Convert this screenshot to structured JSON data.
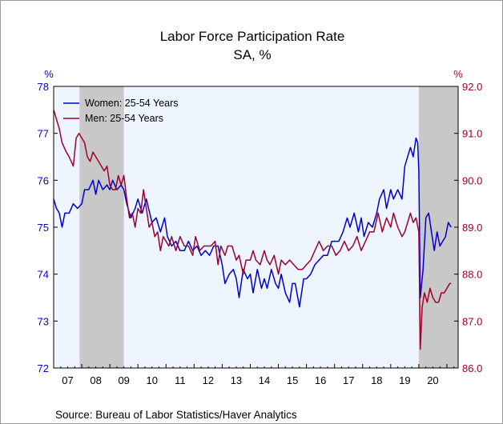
{
  "chart_data": {
    "type": "line",
    "title": "Labor Force Participation Rate",
    "subtitle": "SA, %",
    "source": "Source:  Bureau of Labor Statistics/Haver Analytics",
    "left_axis": {
      "unit": "%",
      "range": [
        72,
        78
      ],
      "ticks": [
        "72",
        "73",
        "74",
        "75",
        "76",
        "77",
        "78"
      ],
      "color": "#0000cc"
    },
    "right_axis": {
      "unit": "%",
      "range": [
        86,
        92
      ],
      "ticks": [
        "86.0",
        "87.0",
        "88.0",
        "89.0",
        "90.0",
        "91.0",
        "92.0"
      ],
      "color": "#a0002a"
    },
    "x_axis": {
      "range": [
        2007,
        2021.4
      ],
      "labels": [
        "07",
        "08",
        "09",
        "10",
        "11",
        "12",
        "13",
        "14",
        "15",
        "16",
        "17",
        "18",
        "19",
        "20"
      ]
    },
    "recessions": [
      [
        2007.92,
        2009.5
      ],
      [
        2020.0,
        2021.4
      ]
    ],
    "legend_position": "top-left",
    "series": [
      {
        "name": "Women: 25-54 Years",
        "axis": "left",
        "color": "#0000cc",
        "points": [
          [
            2007.0,
            75.6
          ],
          [
            2007.1,
            75.4
          ],
          [
            2007.2,
            75.3
          ],
          [
            2007.3,
            75.0
          ],
          [
            2007.4,
            75.3
          ],
          [
            2007.55,
            75.3
          ],
          [
            2007.7,
            75.5
          ],
          [
            2007.85,
            75.4
          ],
          [
            2008.0,
            75.5
          ],
          [
            2008.1,
            75.8
          ],
          [
            2008.25,
            75.8
          ],
          [
            2008.4,
            76.0
          ],
          [
            2008.5,
            75.7
          ],
          [
            2008.6,
            76.0
          ],
          [
            2008.75,
            75.8
          ],
          [
            2008.9,
            75.9
          ],
          [
            2009.0,
            75.8
          ],
          [
            2009.1,
            76.0
          ],
          [
            2009.25,
            75.8
          ],
          [
            2009.4,
            75.9
          ],
          [
            2009.5,
            75.8
          ],
          [
            2009.6,
            75.5
          ],
          [
            2009.75,
            75.2
          ],
          [
            2009.9,
            75.4
          ],
          [
            2010.0,
            75.6
          ],
          [
            2010.15,
            75.3
          ],
          [
            2010.3,
            75.6
          ],
          [
            2010.5,
            75.1
          ],
          [
            2010.65,
            75.2
          ],
          [
            2010.8,
            74.9
          ],
          [
            2010.95,
            75.2
          ],
          [
            2011.05,
            74.8
          ],
          [
            2011.2,
            74.6
          ],
          [
            2011.35,
            74.7
          ],
          [
            2011.5,
            74.5
          ],
          [
            2011.65,
            74.5
          ],
          [
            2011.8,
            74.7
          ],
          [
            2011.95,
            74.5
          ],
          [
            2012.1,
            74.6
          ],
          [
            2012.25,
            74.4
          ],
          [
            2012.4,
            74.5
          ],
          [
            2012.55,
            74.4
          ],
          [
            2012.7,
            74.6
          ],
          [
            2012.85,
            74.6
          ],
          [
            2013.0,
            74.2
          ],
          [
            2013.1,
            73.8
          ],
          [
            2013.25,
            74.0
          ],
          [
            2013.4,
            74.1
          ],
          [
            2013.5,
            73.9
          ],
          [
            2013.6,
            73.5
          ],
          [
            2013.75,
            74.1
          ],
          [
            2013.9,
            73.9
          ],
          [
            2014.0,
            74.0
          ],
          [
            2014.1,
            73.6
          ],
          [
            2014.25,
            74.1
          ],
          [
            2014.4,
            73.7
          ],
          [
            2014.5,
            73.9
          ],
          [
            2014.6,
            73.7
          ],
          [
            2014.75,
            74.1
          ],
          [
            2014.9,
            73.8
          ],
          [
            2015.0,
            73.7
          ],
          [
            2015.1,
            74.0
          ],
          [
            2015.25,
            73.6
          ],
          [
            2015.4,
            73.4
          ],
          [
            2015.5,
            73.8
          ],
          [
            2015.6,
            73.8
          ],
          [
            2015.75,
            73.3
          ],
          [
            2015.9,
            73.9
          ],
          [
            2016.0,
            73.9
          ],
          [
            2016.15,
            74.0
          ],
          [
            2016.3,
            74.2
          ],
          [
            2016.45,
            74.3
          ],
          [
            2016.6,
            74.4
          ],
          [
            2016.75,
            74.4
          ],
          [
            2016.9,
            74.7
          ],
          [
            2017.0,
            74.7
          ],
          [
            2017.15,
            74.7
          ],
          [
            2017.3,
            74.9
          ],
          [
            2017.45,
            75.2
          ],
          [
            2017.55,
            75.0
          ],
          [
            2017.7,
            75.3
          ],
          [
            2017.85,
            74.9
          ],
          [
            2017.95,
            75.2
          ],
          [
            2018.05,
            74.8
          ],
          [
            2018.2,
            75.1
          ],
          [
            2018.35,
            75.0
          ],
          [
            2018.5,
            75.3
          ],
          [
            2018.6,
            75.6
          ],
          [
            2018.75,
            75.8
          ],
          [
            2018.85,
            75.4
          ],
          [
            2019.0,
            75.8
          ],
          [
            2019.1,
            75.6
          ],
          [
            2019.25,
            75.8
          ],
          [
            2019.4,
            75.6
          ],
          [
            2019.5,
            76.3
          ],
          [
            2019.6,
            76.5
          ],
          [
            2019.7,
            76.7
          ],
          [
            2019.8,
            76.5
          ],
          [
            2019.9,
            76.9
          ],
          [
            2019.96,
            76.8
          ],
          [
            2020.0,
            76.2
          ],
          [
            2020.05,
            73.5
          ],
          [
            2020.15,
            74.1
          ],
          [
            2020.25,
            75.2
          ],
          [
            2020.35,
            75.3
          ],
          [
            2020.45,
            74.9
          ],
          [
            2020.55,
            74.5
          ],
          [
            2020.65,
            74.9
          ],
          [
            2020.75,
            74.6
          ],
          [
            2020.85,
            74.7
          ],
          [
            2020.95,
            74.8
          ],
          [
            2021.05,
            75.1
          ],
          [
            2021.15,
            75.0
          ]
        ]
      },
      {
        "name": "Men: 25-54 Years",
        "axis": "right",
        "color": "#a0002a",
        "points": [
          [
            2007.0,
            91.5
          ],
          [
            2007.1,
            91.3
          ],
          [
            2007.2,
            91.1
          ],
          [
            2007.3,
            90.8
          ],
          [
            2007.45,
            90.6
          ],
          [
            2007.55,
            90.5
          ],
          [
            2007.7,
            90.3
          ],
          [
            2007.8,
            90.9
          ],
          [
            2007.9,
            91.0
          ],
          [
            2008.0,
            90.9
          ],
          [
            2008.1,
            90.8
          ],
          [
            2008.2,
            90.5
          ],
          [
            2008.3,
            90.4
          ],
          [
            2008.4,
            90.6
          ],
          [
            2008.5,
            90.5
          ],
          [
            2008.6,
            90.4
          ],
          [
            2008.7,
            90.3
          ],
          [
            2008.8,
            90.2
          ],
          [
            2008.9,
            90.3
          ],
          [
            2009.0,
            89.9
          ],
          [
            2009.1,
            89.8
          ],
          [
            2009.2,
            89.8
          ],
          [
            2009.3,
            90.1
          ],
          [
            2009.4,
            89.9
          ],
          [
            2009.5,
            90.1
          ],
          [
            2009.6,
            89.6
          ],
          [
            2009.7,
            89.2
          ],
          [
            2009.8,
            89.3
          ],
          [
            2009.9,
            89.0
          ],
          [
            2010.0,
            89.4
          ],
          [
            2010.1,
            89.3
          ],
          [
            2010.2,
            89.8
          ],
          [
            2010.3,
            89.4
          ],
          [
            2010.4,
            89.0
          ],
          [
            2010.5,
            89.1
          ],
          [
            2010.6,
            88.8
          ],
          [
            2010.7,
            88.9
          ],
          [
            2010.8,
            88.5
          ],
          [
            2010.9,
            88.8
          ],
          [
            2011.0,
            88.7
          ],
          [
            2011.1,
            88.6
          ],
          [
            2011.2,
            88.8
          ],
          [
            2011.35,
            88.5
          ],
          [
            2011.5,
            88.8
          ],
          [
            2011.65,
            88.6
          ],
          [
            2011.8,
            88.6
          ],
          [
            2011.95,
            88.4
          ],
          [
            2012.05,
            88.8
          ],
          [
            2012.2,
            88.5
          ],
          [
            2012.35,
            88.6
          ],
          [
            2012.5,
            88.6
          ],
          [
            2012.6,
            88.6
          ],
          [
            2012.75,
            88.7
          ],
          [
            2012.85,
            88.2
          ],
          [
            2012.95,
            88.6
          ],
          [
            2013.1,
            88.4
          ],
          [
            2013.2,
            88.6
          ],
          [
            2013.35,
            88.6
          ],
          [
            2013.5,
            88.3
          ],
          [
            2013.6,
            88.4
          ],
          [
            2013.75,
            88.0
          ],
          [
            2013.85,
            88.3
          ],
          [
            2014.0,
            88.3
          ],
          [
            2014.1,
            88.5
          ],
          [
            2014.2,
            88.3
          ],
          [
            2014.35,
            88.2
          ],
          [
            2014.5,
            88.5
          ],
          [
            2014.6,
            88.3
          ],
          [
            2014.7,
            88.2
          ],
          [
            2014.85,
            88.4
          ],
          [
            2015.0,
            88.0
          ],
          [
            2015.1,
            88.3
          ],
          [
            2015.25,
            88.2
          ],
          [
            2015.4,
            88.3
          ],
          [
            2015.55,
            88.2
          ],
          [
            2015.7,
            88.1
          ],
          [
            2015.85,
            88.1
          ],
          [
            2016.0,
            88.2
          ],
          [
            2016.15,
            88.3
          ],
          [
            2016.3,
            88.5
          ],
          [
            2016.45,
            88.7
          ],
          [
            2016.6,
            88.5
          ],
          [
            2016.75,
            88.6
          ],
          [
            2016.9,
            88.6
          ],
          [
            2017.05,
            88.4
          ],
          [
            2017.2,
            88.5
          ],
          [
            2017.35,
            88.7
          ],
          [
            2017.5,
            88.5
          ],
          [
            2017.65,
            88.6
          ],
          [
            2017.8,
            88.8
          ],
          [
            2017.95,
            88.5
          ],
          [
            2018.1,
            88.7
          ],
          [
            2018.25,
            88.9
          ],
          [
            2018.4,
            88.9
          ],
          [
            2018.55,
            89.3
          ],
          [
            2018.7,
            88.9
          ],
          [
            2018.85,
            89.2
          ],
          [
            2019.0,
            89.0
          ],
          [
            2019.1,
            89.3
          ],
          [
            2019.25,
            89.0
          ],
          [
            2019.4,
            88.8
          ],
          [
            2019.5,
            88.9
          ],
          [
            2019.6,
            89.1
          ],
          [
            2019.7,
            89.3
          ],
          [
            2019.8,
            89.1
          ],
          [
            2019.9,
            89.2
          ],
          [
            2020.0,
            88.9
          ],
          [
            2020.05,
            86.4
          ],
          [
            2020.12,
            87.3
          ],
          [
            2020.2,
            87.6
          ],
          [
            2020.3,
            87.4
          ],
          [
            2020.4,
            87.7
          ],
          [
            2020.5,
            87.5
          ],
          [
            2020.6,
            87.4
          ],
          [
            2020.7,
            87.4
          ],
          [
            2020.8,
            87.6
          ],
          [
            2020.9,
            87.6
          ],
          [
            2021.0,
            87.7
          ],
          [
            2021.1,
            87.8
          ],
          [
            2021.15,
            87.8
          ]
        ]
      }
    ]
  }
}
